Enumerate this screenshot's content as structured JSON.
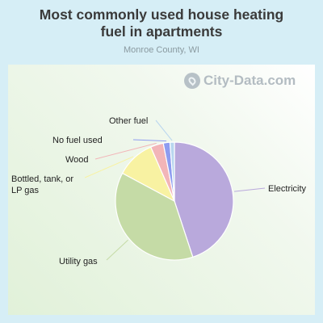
{
  "title_line1": "Most commonly used house heating",
  "title_line2": "fuel in apartments",
  "subtitle": "Monroe County, WI",
  "watermark": "City-Data.com",
  "chart_data": {
    "type": "pie",
    "title": "Most commonly used house heating fuel in apartments",
    "subtitle": "Monroe County, WI",
    "slices": [
      {
        "name": "Electricity",
        "label_lines": [
          "Electricity"
        ],
        "value": 44.5,
        "color": "#b9a9dc"
      },
      {
        "name": "Utility gas",
        "label_lines": [
          "Utility gas"
        ],
        "value": 37.5,
        "color": "#c5dba6"
      },
      {
        "name": "Bottled, tank, or LP gas",
        "label_lines": [
          "Bottled, tank, or",
          "LP gas"
        ],
        "value": 10.5,
        "color": "#f8f2a2"
      },
      {
        "name": "Wood",
        "label_lines": [
          "Wood"
        ],
        "value": 3.5,
        "color": "#f2b5b8"
      },
      {
        "name": "No fuel used",
        "label_lines": [
          "No fuel used"
        ],
        "value": 1.8,
        "color": "#8e9cf0"
      },
      {
        "name": "Other fuel",
        "label_lines": [
          "Other fuel"
        ],
        "value": 1.2,
        "color": "#b8d6ef"
      }
    ]
  }
}
